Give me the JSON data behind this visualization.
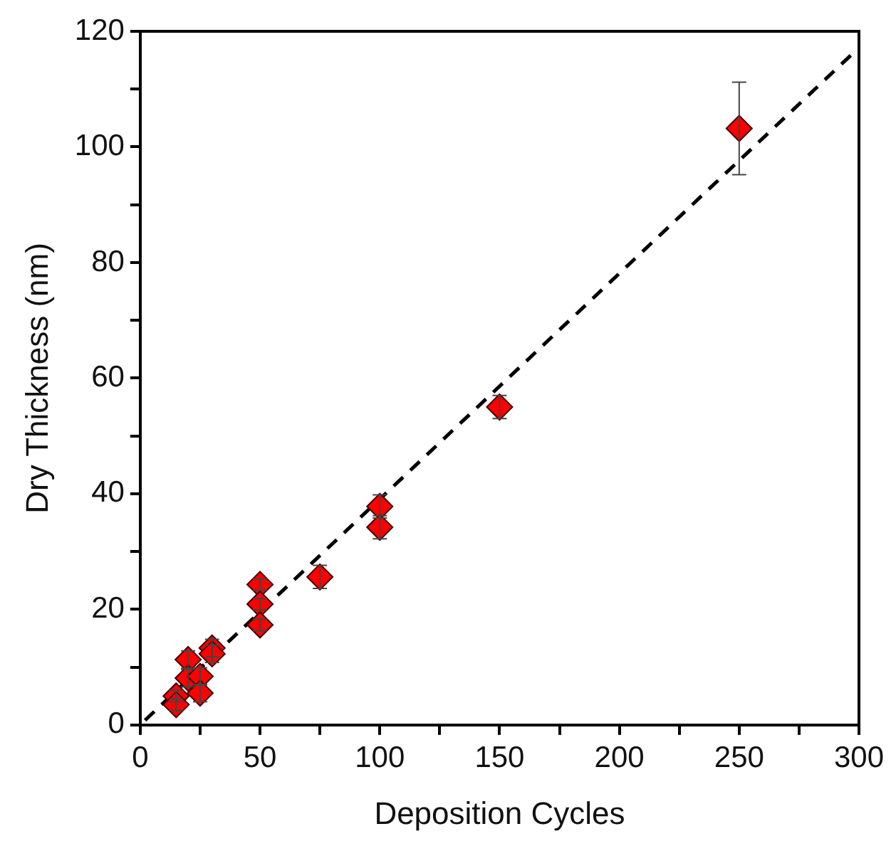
{
  "chart_data": {
    "type": "scatter",
    "xlabel": "Deposition Cycles",
    "ylabel": "Dry Thickness (nm)",
    "xlim": [
      0,
      300
    ],
    "ylim": [
      0,
      120
    ],
    "xticks": [
      0,
      {
        "value": 25,
        "label": null
      },
      50,
      {
        "value": 75,
        "label": null
      },
      100,
      {
        "value": 125,
        "label": null
      },
      150,
      {
        "value": 175,
        "label": null
      },
      200,
      {
        "value": 225,
        "label": null
      },
      250,
      {
        "value": 275,
        "label": null
      },
      300
    ],
    "yticks": [
      0,
      {
        "value": 10,
        "label": null
      },
      20,
      {
        "value": 30,
        "label": null
      },
      40,
      {
        "value": 50,
        "label": null
      },
      60,
      {
        "value": 70,
        "label": null
      },
      80,
      {
        "value": 90,
        "label": null
      },
      100,
      {
        "value": 110,
        "label": null
      },
      120
    ],
    "grid": false,
    "legend": false,
    "series": [
      {
        "type": "line",
        "color": "#000000",
        "line_style": "dashed",
        "marker": "none",
        "x": [
          2,
          297
        ],
        "values": [
          0.8,
          116
        ]
      },
      {
        "type": "scatter",
        "color": "#ff0000",
        "marker": "diamond",
        "x": [
          15,
          15,
          20,
          20,
          25,
          25,
          30,
          30,
          50,
          50,
          50,
          75,
          100,
          100,
          150,
          250
        ],
        "values": [
          5,
          3.5,
          11.3,
          8.1,
          8.4,
          5.5,
          13.3,
          12.3,
          24.3,
          20.9,
          17.3,
          25.6,
          37.8,
          34.2,
          55,
          103.2
        ],
        "errors": [
          1,
          1,
          1.5,
          1.5,
          1.5,
          1.5,
          1.5,
          1.5,
          1,
          1,
          1,
          2,
          2,
          2,
          2,
          8
        ]
      }
    ]
  }
}
